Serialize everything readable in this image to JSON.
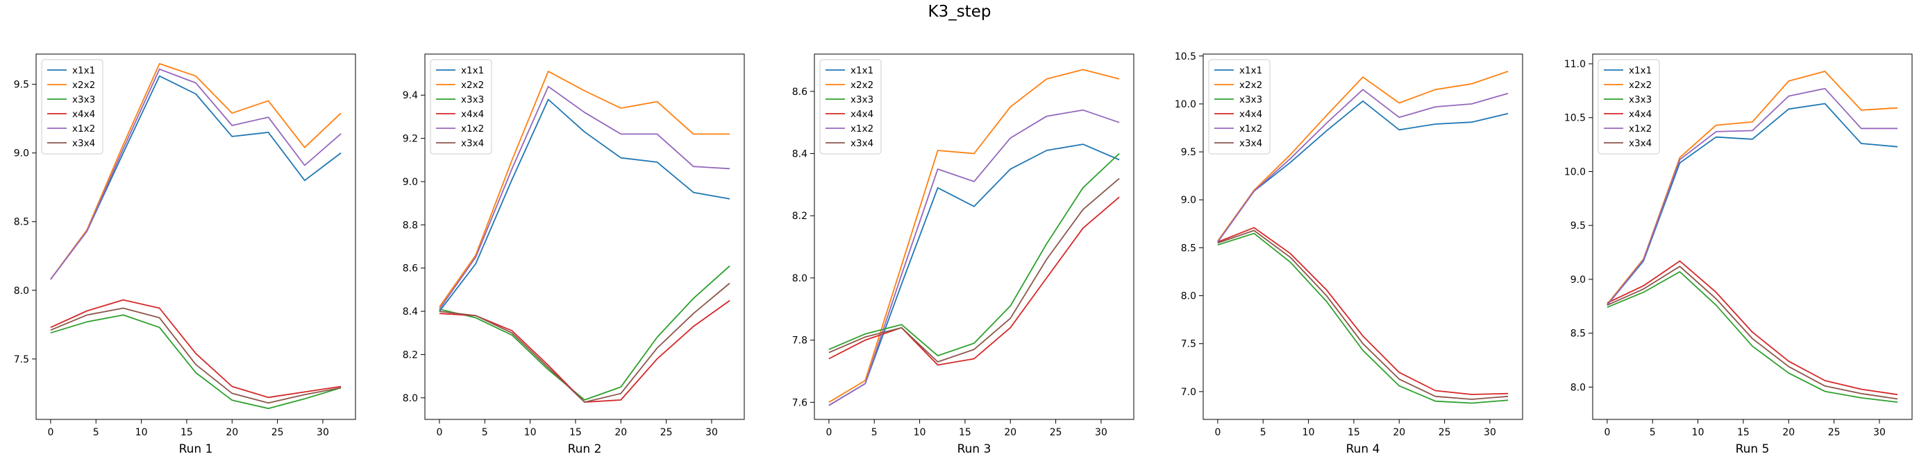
{
  "figure": {
    "title": "K3_step"
  },
  "chart_data": [
    {
      "type": "line",
      "xlabel": "Run 1",
      "ylabel": "",
      "legend_position": "top-left",
      "xlim": [
        -1.6,
        33.6
      ],
      "ylim": [
        7.06,
        9.72
      ],
      "xticks": [
        0,
        5,
        10,
        15,
        20,
        25,
        30
      ],
      "yticks": [
        7.5,
        8.0,
        8.5,
        9.0,
        9.5
      ],
      "ytick_labels": [
        "7.5",
        "8.0",
        "8.5",
        "9.0",
        "9.5"
      ],
      "x": [
        0,
        4,
        8,
        12,
        16,
        20,
        24,
        28,
        32
      ],
      "series": [
        {
          "name": "x1x1",
          "color": "#1f77b4",
          "values": [
            8.08,
            8.43,
            9.0,
            9.56,
            9.43,
            9.12,
            9.15,
            8.8,
            9.0
          ]
        },
        {
          "name": "x2x2",
          "color": "#ff7f0e",
          "values": [
            8.08,
            8.44,
            9.06,
            9.65,
            9.56,
            9.29,
            9.38,
            9.04,
            9.29
          ]
        },
        {
          "name": "x3x3",
          "color": "#2ca02c",
          "values": [
            7.69,
            7.77,
            7.82,
            7.73,
            7.4,
            7.2,
            7.14,
            7.21,
            7.29
          ]
        },
        {
          "name": "x4x4",
          "color": "#d62728",
          "values": [
            7.73,
            7.85,
            7.93,
            7.87,
            7.54,
            7.3,
            7.22,
            7.26,
            7.3
          ]
        },
        {
          "name": "x1x2",
          "color": "#9467bd",
          "values": [
            8.08,
            8.43,
            9.03,
            9.61,
            9.51,
            9.2,
            9.26,
            8.91,
            9.14
          ]
        },
        {
          "name": "x3x4",
          "color": "#8c564b",
          "values": [
            7.71,
            7.82,
            7.87,
            7.8,
            7.46,
            7.25,
            7.18,
            7.24,
            7.29
          ]
        }
      ]
    },
    {
      "type": "line",
      "xlabel": "Run 2",
      "ylabel": "",
      "legend_position": "top-left",
      "xlim": [
        -1.6,
        33.6
      ],
      "ylim": [
        7.9,
        9.59
      ],
      "xticks": [
        0,
        5,
        10,
        15,
        20,
        25,
        30
      ],
      "yticks": [
        8.0,
        8.2,
        8.4,
        8.6,
        8.8,
        9.0,
        9.2,
        9.4
      ],
      "ytick_labels": [
        "8.0",
        "8.2",
        "8.4",
        "8.6",
        "8.8",
        "9.0",
        "9.2",
        "9.4"
      ],
      "x": [
        0,
        4,
        8,
        12,
        16,
        20,
        24,
        28,
        32
      ],
      "series": [
        {
          "name": "x1x1",
          "color": "#1f77b4",
          "values": [
            8.4,
            8.62,
            9.01,
            9.38,
            9.23,
            9.11,
            9.09,
            8.95,
            8.92
          ]
        },
        {
          "name": "x2x2",
          "color": "#ff7f0e",
          "values": [
            8.42,
            8.66,
            9.1,
            9.51,
            9.42,
            9.34,
            9.37,
            9.22,
            9.22
          ]
        },
        {
          "name": "x3x3",
          "color": "#2ca02c",
          "values": [
            8.41,
            8.37,
            8.29,
            8.13,
            7.99,
            8.05,
            8.28,
            8.46,
            8.61
          ]
        },
        {
          "name": "x4x4",
          "color": "#d62728",
          "values": [
            8.39,
            8.38,
            8.31,
            8.15,
            7.98,
            7.99,
            8.18,
            8.33,
            8.45
          ]
        },
        {
          "name": "x1x2",
          "color": "#9467bd",
          "values": [
            8.41,
            8.65,
            9.06,
            9.44,
            9.32,
            9.22,
            9.22,
            9.07,
            9.06
          ]
        },
        {
          "name": "x3x4",
          "color": "#8c564b",
          "values": [
            8.4,
            8.38,
            8.3,
            8.14,
            7.98,
            8.02,
            8.23,
            8.39,
            8.53
          ]
        }
      ]
    },
    {
      "type": "line",
      "xlabel": "Run 3",
      "ylabel": "",
      "legend_position": "top-left",
      "xlim": [
        -1.6,
        33.6
      ],
      "ylim": [
        7.545,
        8.72
      ],
      "xticks": [
        0,
        5,
        10,
        15,
        20,
        25,
        30
      ],
      "yticks": [
        7.6,
        7.8,
        8.0,
        8.2,
        8.4,
        8.6
      ],
      "ytick_labels": [
        "7.6",
        "7.8",
        "8.0",
        "8.2",
        "8.4",
        "8.6"
      ],
      "x": [
        0,
        4,
        8,
        12,
        16,
        20,
        24,
        28,
        32
      ],
      "series": [
        {
          "name": "x1x1",
          "color": "#1f77b4",
          "values": [
            7.59,
            7.66,
            7.98,
            8.29,
            8.23,
            8.35,
            8.41,
            8.43,
            8.38
          ]
        },
        {
          "name": "x2x2",
          "color": "#ff7f0e",
          "values": [
            7.6,
            7.67,
            8.04,
            8.41,
            8.4,
            8.55,
            8.64,
            8.67,
            8.64
          ]
        },
        {
          "name": "x3x3",
          "color": "#2ca02c",
          "values": [
            7.77,
            7.82,
            7.85,
            7.75,
            7.79,
            7.91,
            8.11,
            8.29,
            8.4
          ]
        },
        {
          "name": "x4x4",
          "color": "#d62728",
          "values": [
            7.74,
            7.8,
            7.84,
            7.72,
            7.74,
            7.84,
            8.0,
            8.16,
            8.26
          ]
        },
        {
          "name": "x1x2",
          "color": "#9467bd",
          "values": [
            7.59,
            7.66,
            8.01,
            8.35,
            8.31,
            8.45,
            8.52,
            8.54,
            8.5
          ]
        },
        {
          "name": "x3x4",
          "color": "#8c564b",
          "values": [
            7.76,
            7.81,
            7.84,
            7.73,
            7.77,
            7.87,
            8.06,
            8.22,
            8.32
          ]
        }
      ]
    },
    {
      "type": "line",
      "xlabel": "Run 4",
      "ylabel": "",
      "legend_position": "top-left",
      "xlim": [
        -1.6,
        33.6
      ],
      "ylim": [
        6.71,
        10.52
      ],
      "xticks": [
        0,
        5,
        10,
        15,
        20,
        25,
        30
      ],
      "yticks": [
        7.0,
        7.5,
        8.0,
        8.5,
        9.0,
        9.5,
        10.0,
        10.5
      ],
      "ytick_labels": [
        "7.0",
        "7.5",
        "8.0",
        "8.5",
        "9.0",
        "9.5",
        "10.0",
        "10.5"
      ],
      "x": [
        0,
        4,
        8,
        12,
        16,
        20,
        24,
        28,
        32
      ],
      "series": [
        {
          "name": "x1x1",
          "color": "#1f77b4",
          "values": [
            8.56,
            9.09,
            9.39,
            9.72,
            10.03,
            9.73,
            9.79,
            9.81,
            9.9
          ]
        },
        {
          "name": "x2x2",
          "color": "#ff7f0e",
          "values": [
            8.57,
            9.1,
            9.47,
            9.88,
            10.28,
            10.01,
            10.15,
            10.21,
            10.34
          ]
        },
        {
          "name": "x3x3",
          "color": "#2ca02c",
          "values": [
            8.53,
            8.65,
            8.35,
            7.94,
            7.43,
            7.06,
            6.9,
            6.88,
            6.91
          ]
        },
        {
          "name": "x4x4",
          "color": "#d62728",
          "values": [
            8.56,
            8.71,
            8.44,
            8.06,
            7.58,
            7.2,
            7.01,
            6.97,
            6.98
          ]
        },
        {
          "name": "x1x2",
          "color": "#9467bd",
          "values": [
            8.56,
            9.09,
            9.43,
            9.8,
            10.15,
            9.86,
            9.97,
            10.0,
            10.11
          ]
        },
        {
          "name": "x3x4",
          "color": "#8c564b",
          "values": [
            8.55,
            8.68,
            8.4,
            8.0,
            7.5,
            7.13,
            6.95,
            6.92,
            6.95
          ]
        }
      ]
    },
    {
      "type": "line",
      "xlabel": "Run 5",
      "ylabel": "",
      "legend_position": "top-left",
      "xlim": [
        -1.6,
        33.6
      ],
      "ylim": [
        7.7,
        11.09
      ],
      "xticks": [
        0,
        5,
        10,
        15,
        20,
        25,
        30
      ],
      "yticks": [
        8.0,
        8.5,
        9.0,
        9.5,
        10.0,
        10.5,
        11.0
      ],
      "ytick_labels": [
        "8.0",
        "8.5",
        "9.0",
        "9.5",
        "10.0",
        "10.5",
        "11.0"
      ],
      "x": [
        0,
        4,
        8,
        12,
        16,
        20,
        24,
        28,
        32
      ],
      "series": [
        {
          "name": "x1x1",
          "color": "#1f77b4",
          "values": [
            8.76,
            9.17,
            10.08,
            10.32,
            10.3,
            10.58,
            10.63,
            10.26,
            10.23
          ]
        },
        {
          "name": "x2x2",
          "color": "#ff7f0e",
          "values": [
            8.77,
            9.19,
            10.13,
            10.43,
            10.46,
            10.84,
            10.93,
            10.57,
            10.59
          ]
        },
        {
          "name": "x3x3",
          "color": "#2ca02c",
          "values": [
            8.74,
            8.88,
            9.07,
            8.76,
            8.38,
            8.13,
            7.96,
            7.9,
            7.86
          ]
        },
        {
          "name": "x4x4",
          "color": "#d62728",
          "values": [
            8.78,
            8.94,
            9.17,
            8.88,
            8.51,
            8.24,
            8.06,
            7.98,
            7.93
          ]
        },
        {
          "name": "x1x2",
          "color": "#9467bd",
          "values": [
            8.76,
            9.18,
            10.11,
            10.37,
            10.38,
            10.7,
            10.77,
            10.4,
            10.4
          ]
        },
        {
          "name": "x3x4",
          "color": "#8c564b",
          "values": [
            8.76,
            8.91,
            9.12,
            8.82,
            8.45,
            8.19,
            8.01,
            7.94,
            7.89
          ]
        }
      ]
    }
  ]
}
